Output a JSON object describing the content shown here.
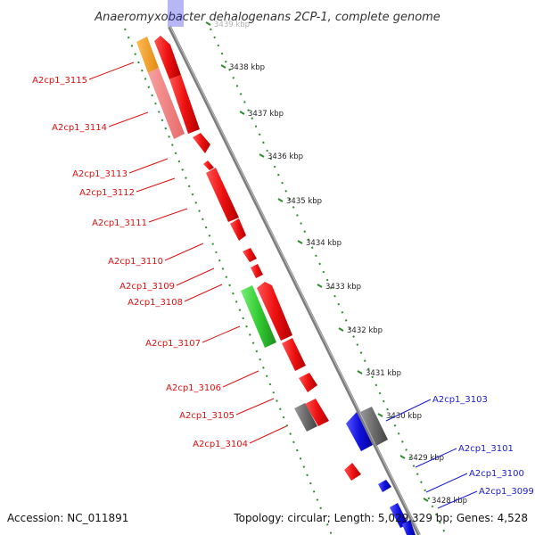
{
  "title": "Anaeromyxobacter dehalogenans 2CP-1, complete genome",
  "footer": {
    "accession": "Accession: NC_011891",
    "summary": "Topology: circular; Length: 5,029,329 bp; Genes: 4,528"
  },
  "ticks": {
    "labels": [
      "3439 kbp",
      "3438 kbp",
      "3437 kbp",
      "3436 kbp",
      "3435 kbp",
      "3434 kbp",
      "3433 kbp",
      "3432 kbp",
      "3431 kbp",
      "3430 kbp",
      "3429 kbp",
      "3428 kbp"
    ]
  },
  "colors": {
    "forward_gene": "#ee1111",
    "reverse_gene": "#1111dd",
    "highlight_orange": "#f59a1a",
    "highlight_pink": "#f07c7c",
    "highlight_green": "#33cc33",
    "gray_gene": "#6b6b6b",
    "backbone": "#8a8a8a",
    "tick_dots": "#2e8b2e"
  },
  "forward_labels": [
    "A2cp1_3115",
    "A2cp1_3114",
    "A2cp1_3113",
    "A2cp1_3112",
    "A2cp1_3111",
    "A2cp1_3110",
    "A2cp1_3109",
    "A2cp1_3108",
    "A2cp1_3107",
    "A2cp1_3106",
    "A2cp1_3105",
    "A2cp1_3104"
  ],
  "reverse_labels": [
    "A2cp1_3103",
    "A2cp1_3101",
    "A2cp1_3100",
    "A2cp1_3099"
  ]
}
